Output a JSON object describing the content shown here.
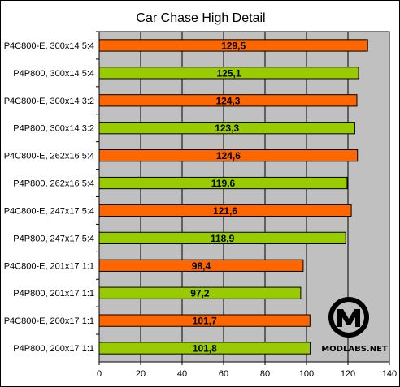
{
  "chart_data": {
    "type": "bar",
    "orientation": "horizontal",
    "title": "Car Chase High Detail",
    "xlabel": "",
    "ylabel": "",
    "xlim": [
      0,
      140
    ],
    "x_ticks": [
      0,
      20,
      40,
      60,
      80,
      100,
      120,
      140
    ],
    "grid": true,
    "legend": "none",
    "categories": [
      "P4C800-E, 300x14 5:4",
      "P4P800, 300x14 5:4",
      "P4C800-E, 300x14 3:2",
      "P4P800, 300x14 3:2",
      "P4C800-E, 262x16 5:4",
      "P4P800, 262x16 5:4",
      "P4C800-E, 247x17 5:4",
      "P4P800, 247x17 5:4",
      "P4C800-E, 201x17 1:1",
      "P4P800, 201x17 1:1",
      "P4C800-E, 200x17 1:1",
      "P4P800, 200x17 1:1"
    ],
    "values": [
      129.5,
      125.1,
      124.3,
      123.3,
      124.6,
      119.6,
      121.6,
      118.9,
      98.4,
      97.2,
      101.7,
      101.8
    ],
    "value_labels": [
      "129,5",
      "125,1",
      "124,3",
      "123,3",
      "124,6",
      "119,6",
      "121,6",
      "118,9",
      "98,4",
      "97,2",
      "101,7",
      "101,8"
    ],
    "bar_colors": [
      "#ff6600",
      "#99cc00",
      "#ff6600",
      "#99cc00",
      "#ff6600",
      "#99cc00",
      "#ff6600",
      "#99cc00",
      "#ff6600",
      "#99cc00",
      "#ff6600",
      "#99cc00"
    ],
    "plot_background": "#c0c0c0"
  },
  "watermark": {
    "text": "MODLABS.NET"
  }
}
